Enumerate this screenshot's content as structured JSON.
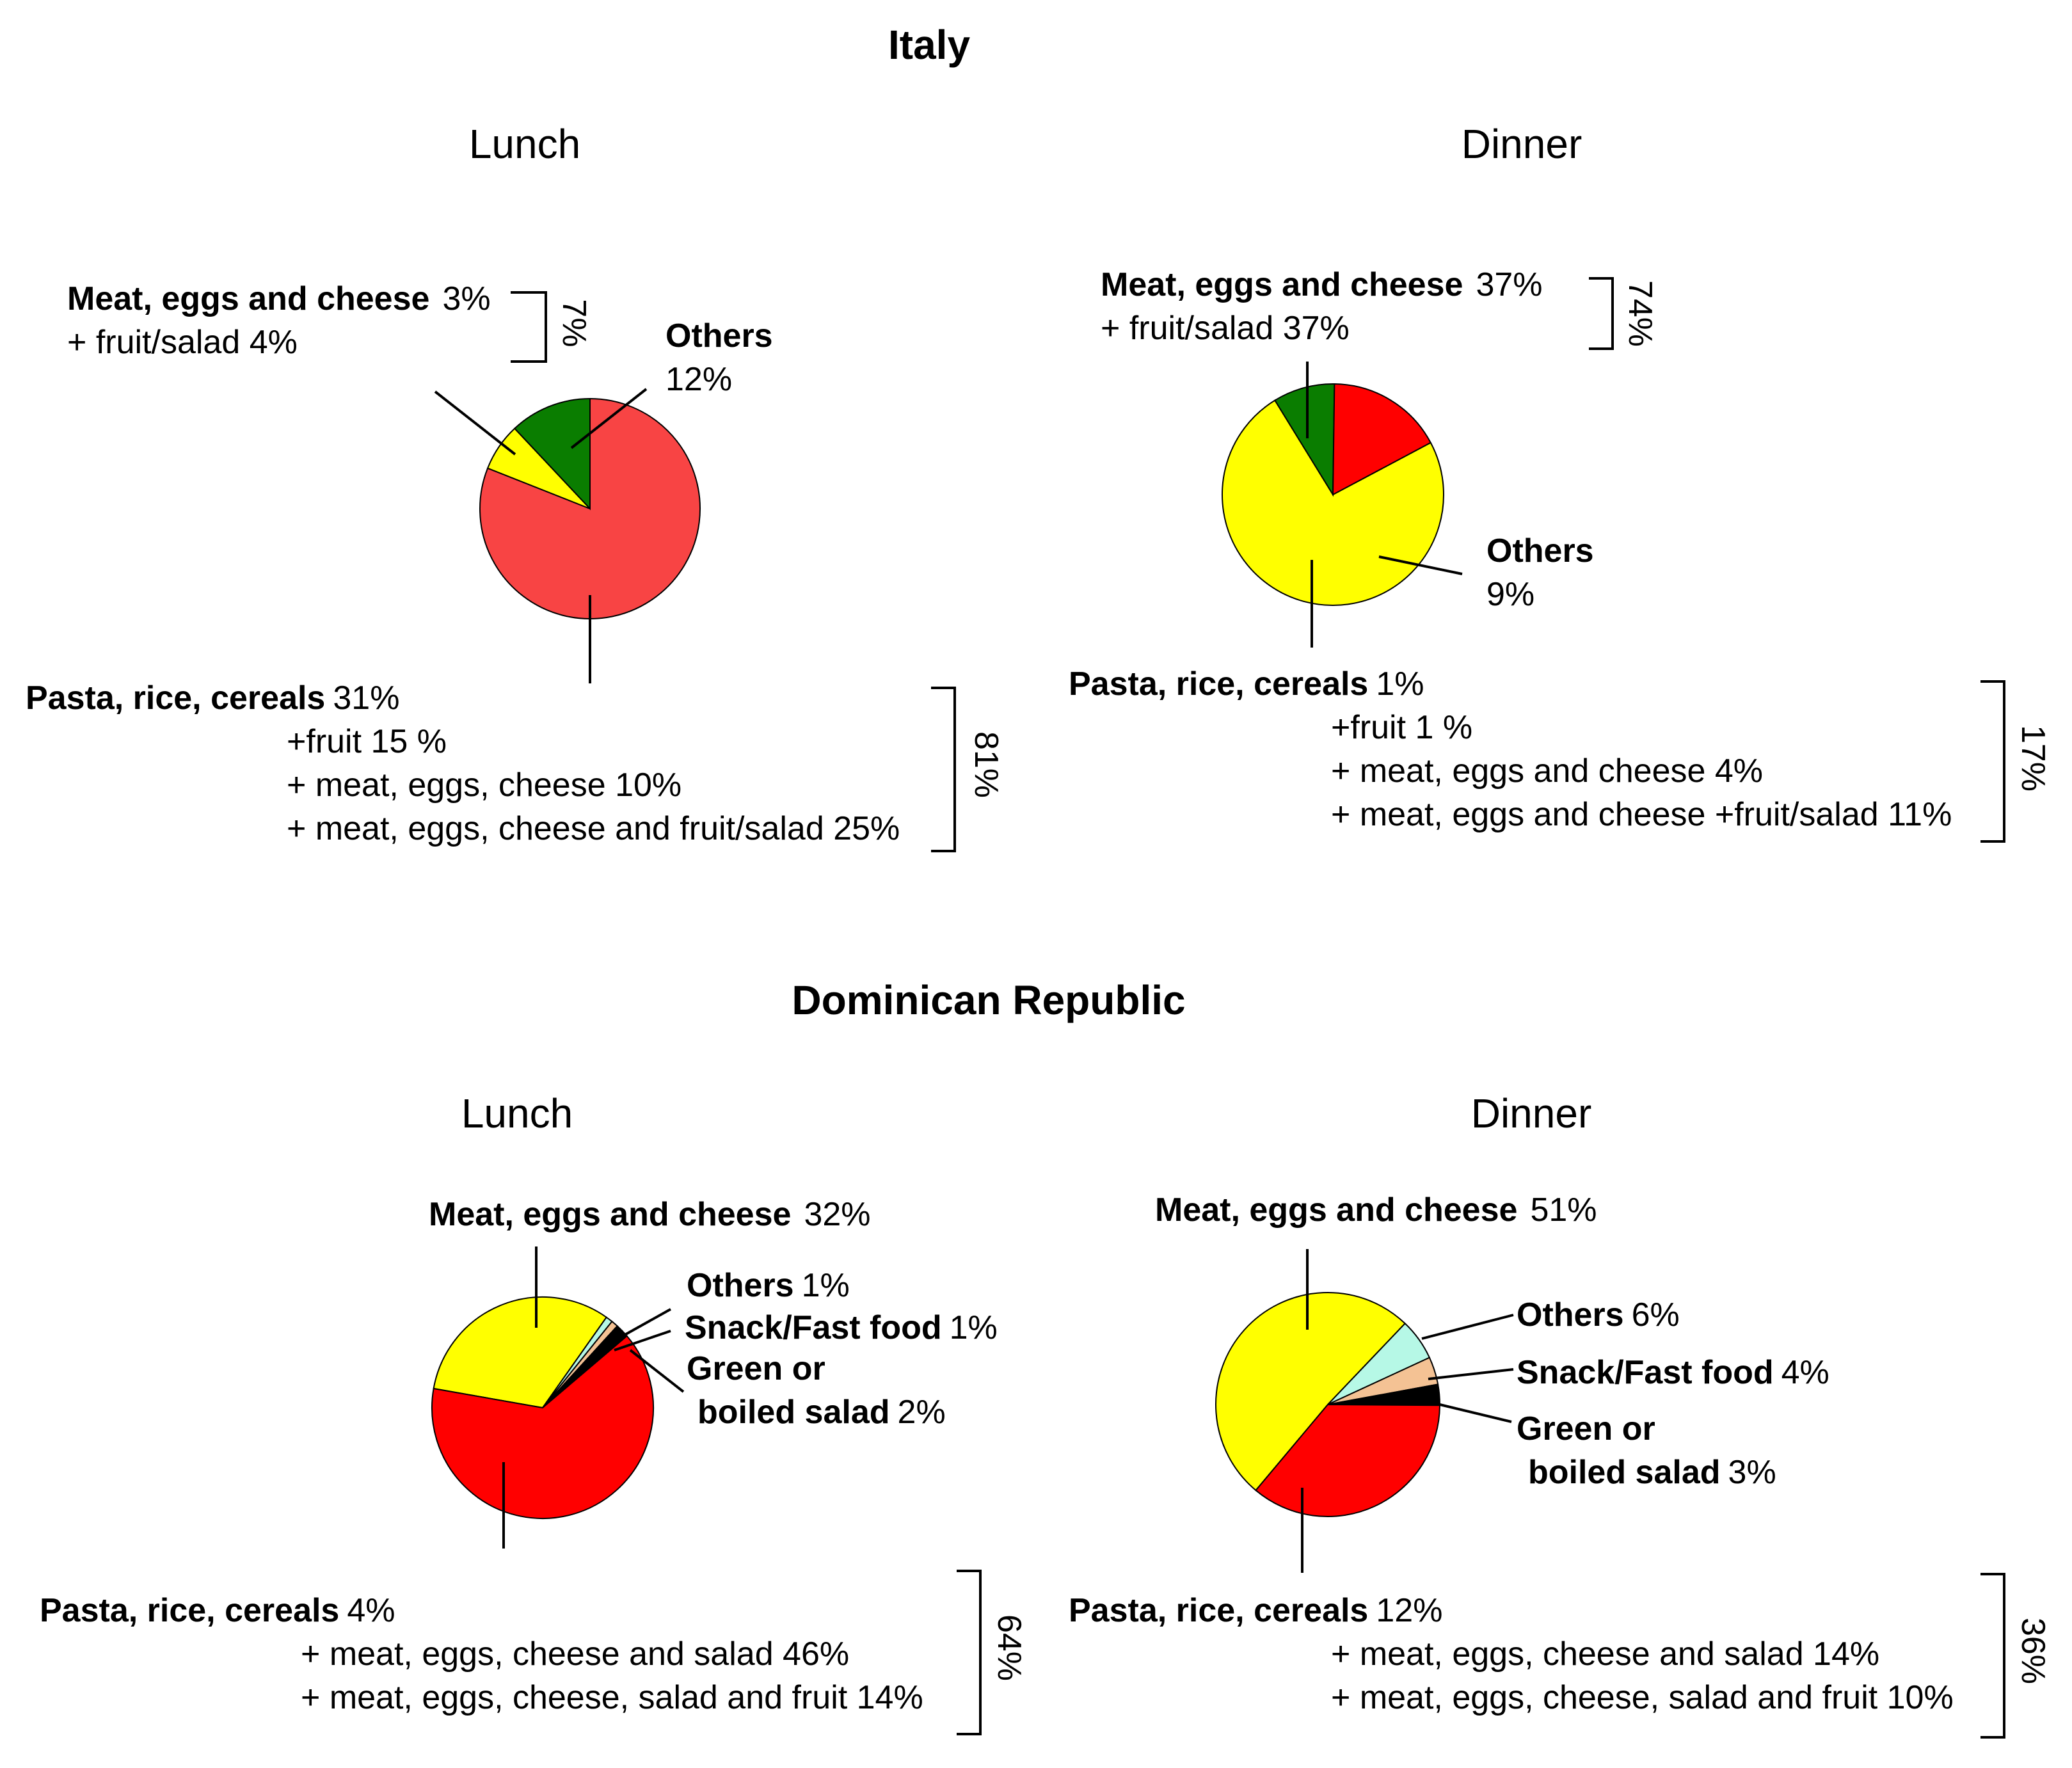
{
  "colors": {
    "red_light": "#f84444",
    "red": "#ff0000",
    "yellow": "#ffff00",
    "green": "#0a7d00",
    "black": "#000000",
    "mint": "#b6f8e6",
    "peach": "#f4c294"
  },
  "chart_data": [
    {
      "type": "pie",
      "country": "Italy",
      "title": "Lunch",
      "slices": [
        {
          "name": "Pasta, rice, cereals",
          "value": 81,
          "color": "#f84444"
        },
        {
          "name": "Meat, eggs and cheese",
          "value": 7,
          "color": "#ffff00"
        },
        {
          "name": "Others",
          "value": 12,
          "color": "#0a7d00"
        }
      ],
      "labels": {
        "meat": {
          "name": "Meat, eggs and cheese",
          "value": "3%",
          "sub": "+ fruit/salad 4%",
          "total": "7%"
        },
        "others": {
          "name": "Others",
          "value": "12%"
        },
        "pasta": {
          "name": "Pasta, rice, cereals",
          "value": "31%",
          "subs": [
            "+fruit 15 %",
            "+ meat, eggs, cheese 10%",
            "+ meat, eggs, cheese and fruit/salad 25%"
          ],
          "total": "81%"
        }
      }
    },
    {
      "type": "pie",
      "country": "Italy",
      "title": "Dinner",
      "slices": [
        {
          "name": "Meat, eggs and cheese",
          "value": 74,
          "color": "#ffff00"
        },
        {
          "name": "Others",
          "value": 9,
          "color": "#0a7d00"
        },
        {
          "name": "Pasta, rice, cereals",
          "value": 17,
          "color": "#ff0000"
        }
      ],
      "labels": {
        "meat": {
          "name": "Meat, eggs and cheese",
          "value": "37%",
          "sub": "+ fruit/salad 37%",
          "total": "74%"
        },
        "others": {
          "name": "Others",
          "value": "9%"
        },
        "pasta": {
          "name": "Pasta, rice, cereals",
          "value": "1%",
          "subs": [
            "+fruit 1 %",
            "+ meat, eggs and cheese 4%",
            "+ meat, eggs and cheese +fruit/salad 11%"
          ],
          "total": "17%"
        }
      }
    },
    {
      "type": "pie",
      "country": "Dominican Republic",
      "title": "Lunch",
      "slices": [
        {
          "name": "Meat, eggs and cheese",
          "value": 32,
          "color": "#ffff00"
        },
        {
          "name": "Others",
          "value": 1,
          "color": "#b6f8e6"
        },
        {
          "name": "Snack/Fast food",
          "value": 1,
          "color": "#f4c294"
        },
        {
          "name": "Green or boiled salad",
          "value": 2,
          "color": "#000000"
        },
        {
          "name": "Pasta, rice, cereals",
          "value": 64,
          "color": "#ff0000"
        }
      ],
      "labels": {
        "meat": {
          "name": "Meat, eggs and cheese",
          "value": "32%"
        },
        "others": {
          "name": "Others",
          "value": "1%"
        },
        "snack": {
          "name": "Snack/Fast food",
          "value": "1%"
        },
        "green1": "Green or",
        "green2": "boiled salad",
        "green_value": "2%",
        "pasta": {
          "name": "Pasta, rice, cereals",
          "value": "4%",
          "subs": [
            "+ meat, eggs, cheese and salad 46%",
            "+ meat, eggs, cheese, salad and fruit 14%"
          ],
          "total": "64%"
        }
      }
    },
    {
      "type": "pie",
      "country": "Dominican Republic",
      "title": "Dinner",
      "slices": [
        {
          "name": "Meat, eggs and cheese",
          "value": 51,
          "color": "#ffff00"
        },
        {
          "name": "Others",
          "value": 6,
          "color": "#b6f8e6"
        },
        {
          "name": "Snack/Fast food",
          "value": 4,
          "color": "#f4c294"
        },
        {
          "name": "Green or boiled salad",
          "value": 3,
          "color": "#000000"
        },
        {
          "name": "Pasta, rice, cereals",
          "value": 36,
          "color": "#ff0000"
        }
      ],
      "labels": {
        "meat": {
          "name": "Meat, eggs and cheese",
          "value": "51%"
        },
        "others": {
          "name": "Others",
          "value": "6%"
        },
        "snack": {
          "name": "Snack/Fast food",
          "value": "4%"
        },
        "green1": "Green or",
        "green2": "boiled salad",
        "green_value": "3%",
        "pasta": {
          "name": "Pasta, rice, cereals",
          "value": "12%",
          "subs": [
            "+ meat, eggs, cheese and salad 14%",
            "+ meat, eggs, cheese, salad and fruit 10%"
          ],
          "total": "36%"
        }
      }
    }
  ]
}
